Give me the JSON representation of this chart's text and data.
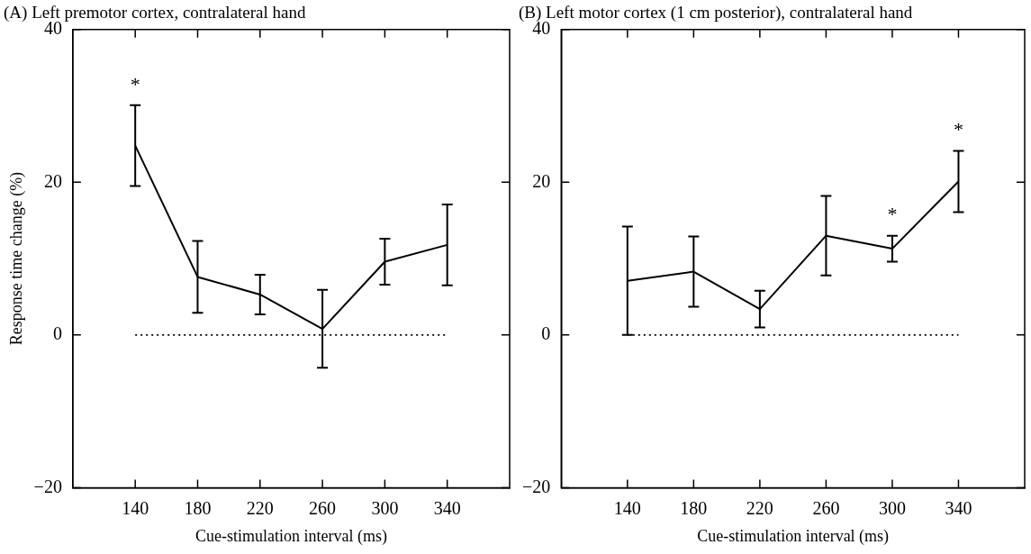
{
  "chart_data": [
    {
      "type": "line",
      "title": "(A) Left premotor cortex, contralateral hand",
      "xlabel": "Cue-stimulation interval (ms)",
      "ylabel": "Response time change (%)",
      "xlim": [
        100,
        380
      ],
      "xticks": [
        140,
        180,
        220,
        260,
        300,
        340
      ],
      "ylim": [
        -20,
        40
      ],
      "yticks": [
        -20,
        0,
        20,
        40
      ],
      "marker": "none",
      "series": [
        {
          "color": "#000000",
          "x": [
            140,
            180,
            220,
            260,
            300,
            340
          ],
          "values": [
            24.8,
            7.6,
            5.3,
            0.8,
            9.6,
            11.8
          ],
          "errors": [
            5.3,
            4.7,
            2.6,
            5.1,
            3.0,
            5.3
          ]
        },
        {
          "color": "#000000",
          "x": [
            140,
            340
          ],
          "values": [
            0,
            0
          ],
          "line_style": "dotted"
        }
      ],
      "annotations": [
        {
          "text": "*",
          "x": 140,
          "y": 24.8
        }
      ]
    },
    {
      "type": "line",
      "title": "(B) Left motor cortex (1 cm posterior), contralateral hand",
      "xlabel": "Cue-stimulation interval (ms)",
      "xlim": [
        100,
        380
      ],
      "xticks": [
        140,
        180,
        220,
        260,
        300,
        340
      ],
      "ylim": [
        -20,
        40
      ],
      "yticks": [
        -20,
        0,
        20,
        40
      ],
      "marker": "none",
      "series": [
        {
          "color": "#000000",
          "x": [
            140,
            180,
            220,
            260,
            300,
            340
          ],
          "values": [
            7.1,
            8.3,
            3.4,
            13.0,
            11.3,
            20.1
          ],
          "errors": [
            7.1,
            4.6,
            2.4,
            5.2,
            1.7,
            4.0
          ]
        },
        {
          "color": "#000000",
          "x": [
            140,
            340
          ],
          "values": [
            0,
            0
          ],
          "line_style": "dotted"
        }
      ],
      "annotations": [
        {
          "text": "*",
          "x": 300,
          "y": 11.3
        },
        {
          "text": "*",
          "x": 340,
          "y": 20.1
        }
      ]
    }
  ]
}
